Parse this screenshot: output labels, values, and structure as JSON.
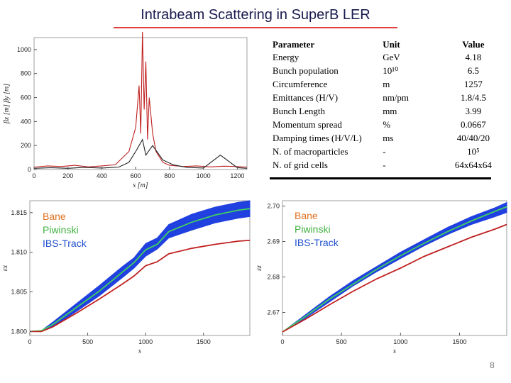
{
  "title": "Intrabeam Scattering in SuperB LER",
  "page_number": "8",
  "legend": [
    {
      "label": "Bane",
      "color": "#e07020"
    },
    {
      "label": "Piwinski",
      "color": "#40b040"
    },
    {
      "label": "IBS-Track",
      "color": "#2050d0"
    }
  ],
  "table": {
    "headers": [
      "Parameter",
      "Unit",
      "Value"
    ],
    "rows": [
      [
        "Energy",
        "GeV",
        "4.18"
      ],
      [
        "Bunch population",
        "10¹⁰",
        "6.5"
      ],
      [
        "Circumference",
        "m",
        "1257"
      ],
      [
        "Emittances (H/V)",
        "nm/pm",
        "1.8/4.5"
      ],
      [
        "Bunch Length",
        "mm",
        "3.99"
      ],
      [
        "Momentum spread",
        "%",
        "0.0667"
      ],
      [
        "Damping times (H/V/L)",
        "ms",
        "40/40/20"
      ],
      [
        "N. of macroparticles",
        "-",
        "10⁵"
      ],
      [
        "N. of grid cells",
        "-",
        "64x64x64"
      ]
    ]
  },
  "chart_data": [
    {
      "type": "line",
      "xlabel": "s [m]",
      "ylabel": "βx [m]  βy [m]",
      "xticks": [
        "0",
        "200",
        "400",
        "600",
        "800",
        "1000",
        "1200"
      ],
      "yticks": [
        "0",
        "200",
        "400",
        "600",
        "800",
        "1000"
      ],
      "xlim": [
        0,
        1257
      ],
      "ylim": [
        0,
        1100
      ],
      "series": [
        {
          "color": "#c02020",
          "x": [
            0,
            80,
            160,
            240,
            320,
            400,
            480,
            560,
            600,
            620,
            630,
            640,
            650,
            660,
            670,
            680,
            700,
            720,
            760,
            800,
            880,
            960,
            1040,
            1120,
            1200,
            1257
          ],
          "values": [
            20,
            30,
            25,
            35,
            22,
            30,
            40,
            150,
            350,
            700,
            300,
            1150,
            500,
            900,
            250,
            600,
            300,
            150,
            60,
            35,
            25,
            30,
            22,
            28,
            25,
            20
          ]
        },
        {
          "color": "#202020",
          "x": [
            0,
            100,
            200,
            300,
            400,
            500,
            560,
            600,
            640,
            660,
            700,
            760,
            820,
            900,
            1000,
            1100,
            1200,
            1257
          ],
          "values": [
            10,
            15,
            10,
            18,
            12,
            20,
            60,
            150,
            250,
            120,
            200,
            80,
            40,
            18,
            12,
            120,
            15,
            10
          ]
        }
      ]
    },
    {
      "type": "line",
      "xlabel": "s",
      "ylabel": "εx",
      "xticks": [
        "0",
        "500",
        "1000",
        "1500"
      ],
      "yticks": [
        "1.800",
        "1.805",
        "1.810",
        "1.815"
      ],
      "xlim": [
        0,
        1900
      ],
      "ylim": [
        1.7995,
        1.8165
      ],
      "series": [
        {
          "color": "#2040e0",
          "band": true,
          "x": [
            0,
            100,
            200,
            400,
            600,
            800,
            900,
            1000,
            1100,
            1200,
            1400,
            1600,
            1800,
            1900
          ],
          "upper": [
            1.8,
            1.8001,
            1.8012,
            1.8035,
            1.8058,
            1.8082,
            1.8093,
            1.8111,
            1.8118,
            1.8135,
            1.8148,
            1.8157,
            1.8163,
            1.8165
          ],
          "lower": [
            1.8,
            1.8,
            1.8006,
            1.8025,
            1.8045,
            1.8068,
            1.808,
            1.8095,
            1.8104,
            1.8118,
            1.8128,
            1.8137,
            1.8143,
            1.8145
          ]
        },
        {
          "color": "#40d060",
          "x": [
            0,
            100,
            200,
            400,
            600,
            800,
            900,
            1000,
            1100,
            1200,
            1400,
            1600,
            1800,
            1900
          ],
          "values": [
            1.8,
            1.8001,
            1.8009,
            1.803,
            1.8051,
            1.8075,
            1.8087,
            1.8103,
            1.811,
            1.8126,
            1.8138,
            1.8147,
            1.8153,
            1.8155
          ]
        },
        {
          "color": "#c02020",
          "x": [
            0,
            100,
            200,
            400,
            600,
            800,
            900,
            1000,
            1100,
            1200,
            1400,
            1600,
            1800,
            1900
          ],
          "values": [
            1.8,
            1.8,
            1.8006,
            1.8023,
            1.8041,
            1.806,
            1.807,
            1.8083,
            1.8088,
            1.8098,
            1.8105,
            1.811,
            1.8114,
            1.8115
          ]
        }
      ]
    },
    {
      "type": "line",
      "xlabel": "s",
      "ylabel": "εz",
      "xticks": [
        "0",
        "500",
        "1000",
        "1500"
      ],
      "yticks": [
        "2.67",
        "2.68",
        "2.69",
        "2.70"
      ],
      "xlim": [
        0,
        1900
      ],
      "ylim": [
        2.6635,
        2.7015
      ],
      "series": [
        {
          "color": "#2040e0",
          "band": true,
          "x": [
            0,
            200,
            400,
            600,
            800,
            1000,
            1200,
            1400,
            1600,
            1800,
            1900
          ],
          "upper": [
            2.6645,
            2.6695,
            2.6745,
            2.679,
            2.683,
            2.687,
            2.6905,
            2.694,
            2.697,
            2.6995,
            2.701
          ],
          "lower": [
            2.6645,
            2.6685,
            2.673,
            2.6775,
            2.6815,
            2.6852,
            2.6888,
            2.692,
            2.6948,
            2.697,
            2.6982
          ]
        },
        {
          "color": "#40d060",
          "x": [
            0,
            200,
            400,
            600,
            800,
            1000,
            1200,
            1400,
            1600,
            1800,
            1900
          ],
          "values": [
            2.6645,
            2.669,
            2.6738,
            2.678,
            2.6822,
            2.686,
            2.6895,
            2.6928,
            2.6958,
            2.6985,
            2.6998
          ]
        },
        {
          "color": "#c02020",
          "x": [
            0,
            200,
            400,
            600,
            800,
            1000,
            1200,
            1400,
            1600,
            1800,
            1900
          ],
          "values": [
            2.6645,
            2.6682,
            2.6722,
            2.676,
            2.6795,
            2.6825,
            2.6858,
            2.6885,
            2.6912,
            2.6935,
            2.6948
          ]
        }
      ]
    }
  ]
}
